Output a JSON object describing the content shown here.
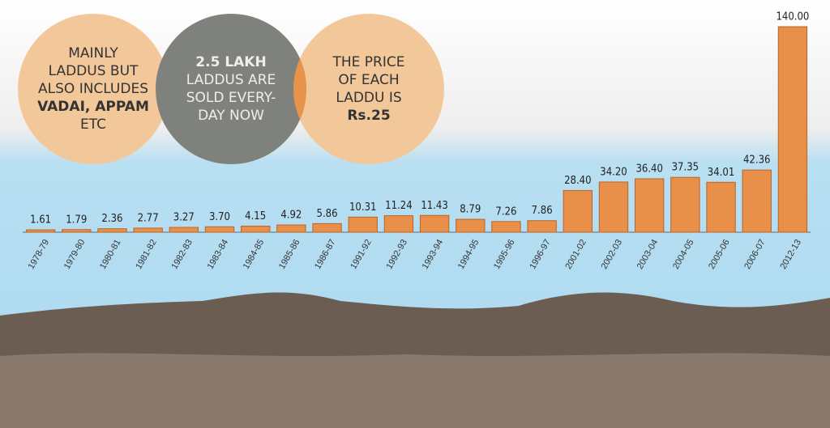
{
  "chart_data": {
    "type": "bar",
    "categories": [
      "1978-79",
      "1979-80",
      "1980-81",
      "1981-82",
      "1982-83",
      "1983-84",
      "1984-85",
      "1985-86",
      "1986-87",
      "1991-92",
      "1992-93",
      "1993-94",
      "1994-95",
      "1995-96",
      "1996-97",
      "2001-02",
      "2002-03",
      "2003-04",
      "2004-05",
      "2005-06",
      "2006-07",
      "2012-13"
    ],
    "values": [
      1.61,
      1.79,
      2.36,
      2.77,
      3.27,
      3.7,
      4.15,
      4.92,
      5.86,
      10.31,
      11.24,
      11.43,
      8.79,
      7.26,
      7.86,
      28.4,
      34.2,
      36.4,
      37.35,
      34.01,
      42.36,
      140
    ],
    "value_labels": [
      "1.61",
      "1.79",
      "2.36",
      "2.77",
      "3.27",
      "3.70",
      "4.15",
      "4.92",
      "5.86",
      "10.31",
      "11.24",
      "11.43",
      "8.79",
      "7.26",
      "7.86",
      "28.40",
      "34.20",
      "36.40",
      "37.35",
      "34.01",
      "42.36",
      "140.00"
    ],
    "color": "#e8904a",
    "ylim": [
      0,
      140
    ]
  },
  "annotations": [
    {
      "lines": [
        {
          "text": "MAINLY",
          "bold": false
        },
        {
          "text": "LADDUS BUT",
          "bold": false
        },
        {
          "text": "ALSO INCLUDES",
          "bold": false
        },
        {
          "text": "VADAI, APPAM",
          "bold": true
        },
        {
          "text": "ETC",
          "bold": false
        }
      ]
    },
    {
      "lines": [
        {
          "text": "2.5 LAKH",
          "bold": true
        },
        {
          "text": "LADDUS ARE",
          "bold": false
        },
        {
          "text": "SOLD EVERY-",
          "bold": false
        },
        {
          "text": "DAY NOW",
          "bold": false
        }
      ]
    },
    {
      "lines": [
        {
          "text": "THE PRICE",
          "bold": false
        },
        {
          "text": "OF EACH",
          "bold": false
        },
        {
          "text": "LADDU IS",
          "bold": false
        },
        {
          "text": "Rs.25",
          "bold": true
        }
      ]
    }
  ]
}
